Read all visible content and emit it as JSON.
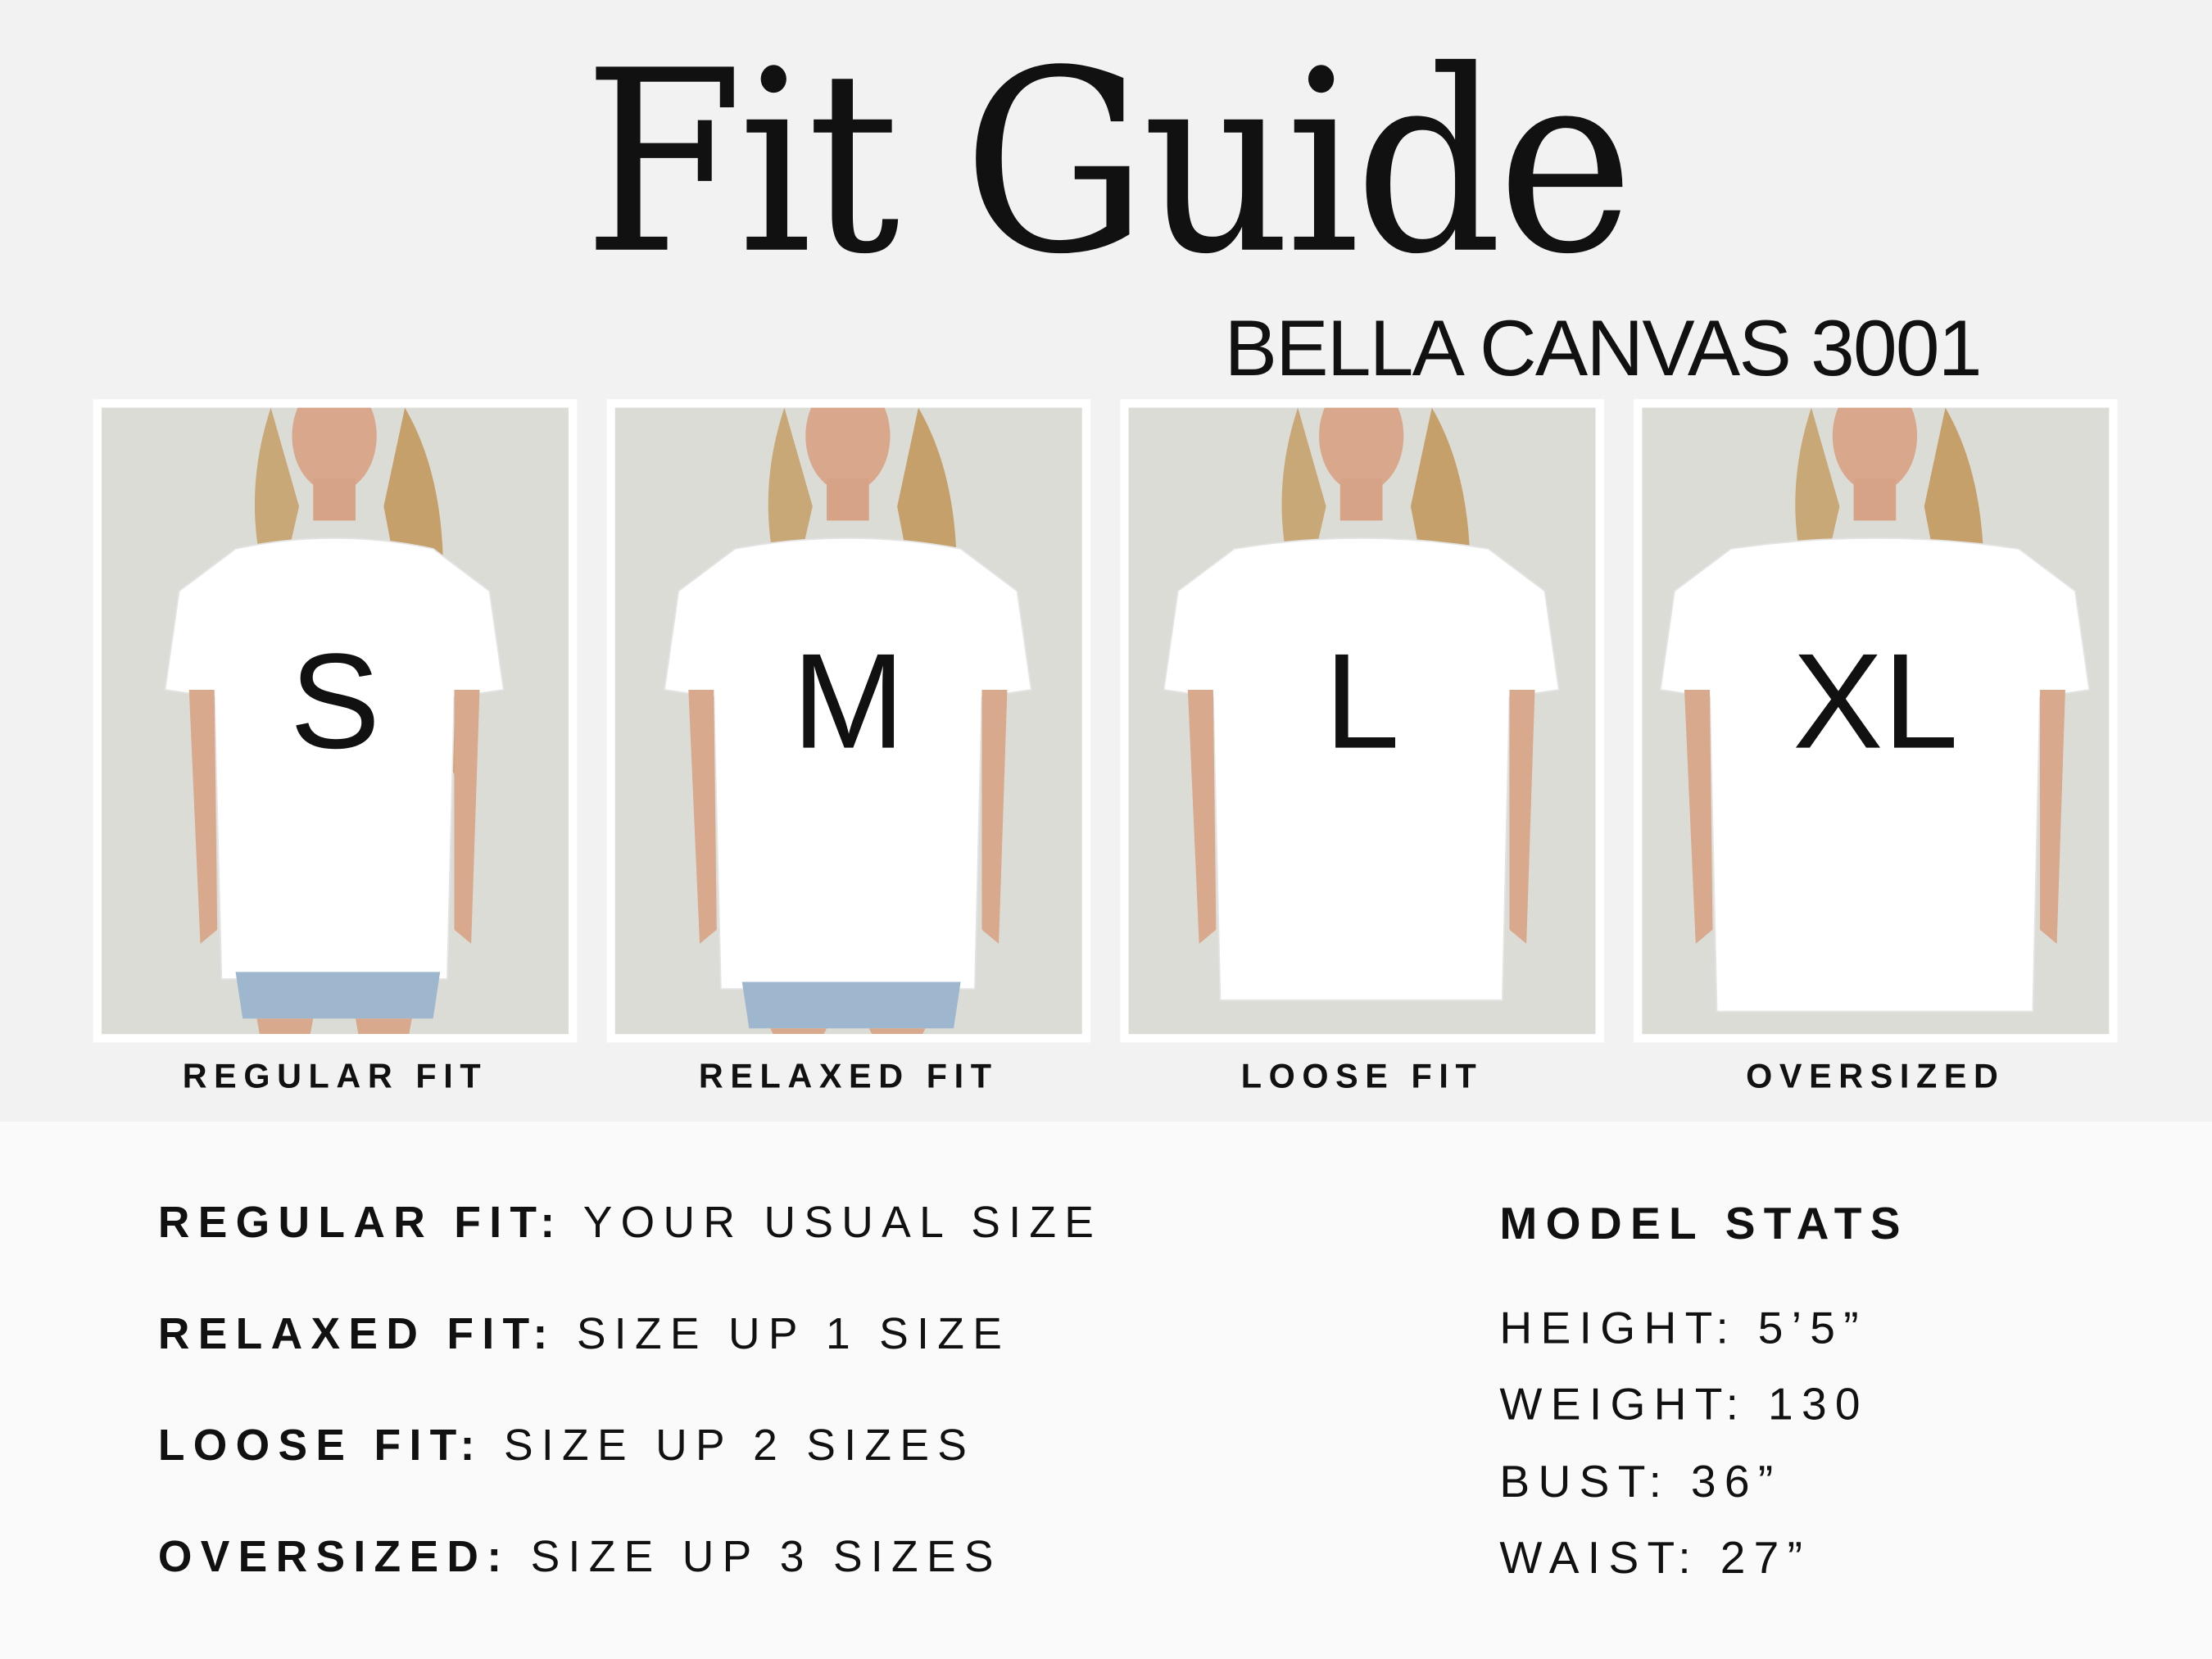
{
  "header": {
    "title": "Fit Guide",
    "subtitle": "BELLA CANVAS 3001"
  },
  "cards": [
    {
      "size": "S",
      "label": "REGULAR FIT"
    },
    {
      "size": "M",
      "label": "RELAXED FIT"
    },
    {
      "size": "L",
      "label": "LOOSE FIT"
    },
    {
      "size": "XL",
      "label": "OVERSIZED"
    }
  ],
  "rules": [
    {
      "fit": "REGULAR FIT:",
      "advice": "YOUR USUAL SIZE"
    },
    {
      "fit": "RELAXED FIT:",
      "advice": "SIZE UP 1 SIZE"
    },
    {
      "fit": "LOOSE FIT:",
      "advice": "SIZE UP 2 SIZES"
    },
    {
      "fit": "OVERSIZED:",
      "advice": "SIZE UP 3 SIZES"
    }
  ],
  "model_stats": {
    "title": "MODEL STATS",
    "items": [
      "HEIGHT: 5’5”",
      "WEIGHT: 130",
      "BUST: 36”",
      "WAIST: 27”"
    ]
  },
  "colors": {
    "background": "#f2f2f2",
    "panel": "#fafafa",
    "text": "#111111",
    "shirt": "#ffffff"
  }
}
